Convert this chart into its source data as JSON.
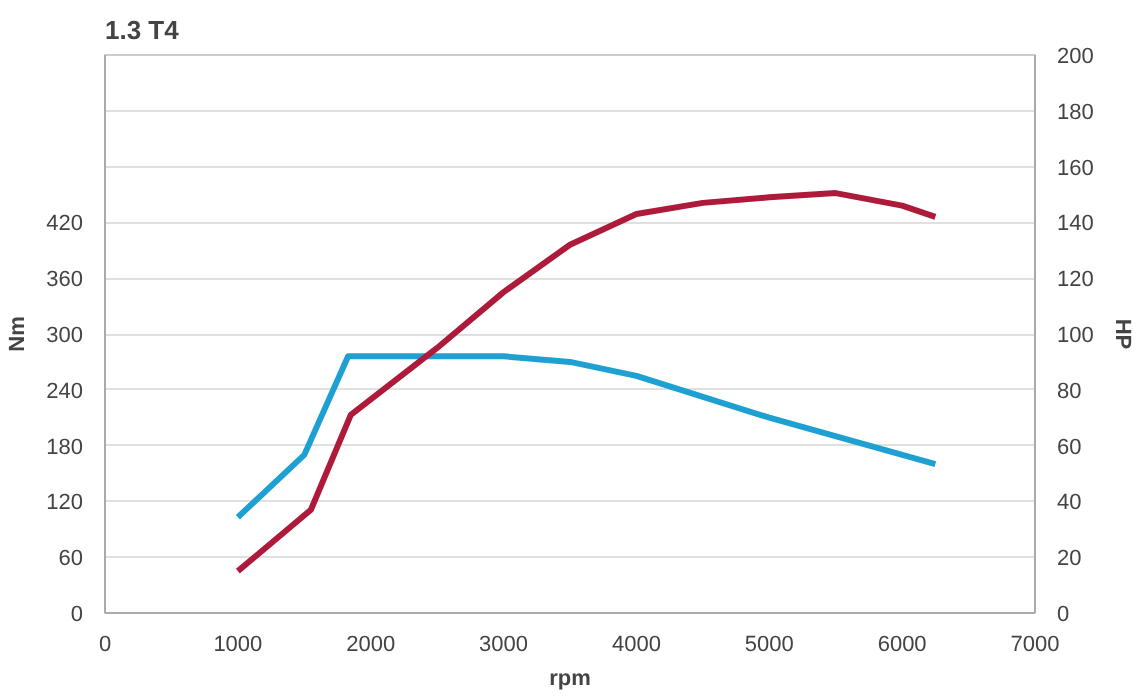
{
  "chart_data": {
    "type": "line",
    "title": "1.3 T4",
    "xlabel": "rpm",
    "ylabel": "Nm",
    "y2label": "HP",
    "xlim": [
      0,
      7000
    ],
    "xticks": [
      0,
      1000,
      2000,
      3000,
      4000,
      5000,
      6000,
      7000
    ],
    "ylim": [
      0,
      600
    ],
    "yticks": [
      0,
      60,
      120,
      180,
      240,
      300,
      360,
      420
    ],
    "y2lim": [
      0,
      200
    ],
    "y2ticks": [
      0,
      20,
      40,
      60,
      80,
      100,
      120,
      140,
      160,
      180,
      200
    ],
    "grid": "y",
    "marker": "none",
    "line_style": "solid",
    "series": [
      {
        "color": "#1fa0d2",
        "x": [
          1000,
          1500,
          1830,
          3000,
          3500,
          4000,
          5000,
          6250
        ],
        "values": [
          103,
          170,
          276,
          276,
          270,
          255,
          210,
          160
        ]
      },
      {
        "color": "#ad1a3a",
        "axis": "y2",
        "x": [
          1000,
          1550,
          1850,
          2500,
          3000,
          3500,
          4000,
          4500,
          5000,
          5500,
          6000,
          6250
        ],
        "values": [
          15,
          37,
          71,
          95,
          115,
          132,
          143,
          147,
          149,
          150.5,
          146,
          142
        ]
      }
    ]
  }
}
